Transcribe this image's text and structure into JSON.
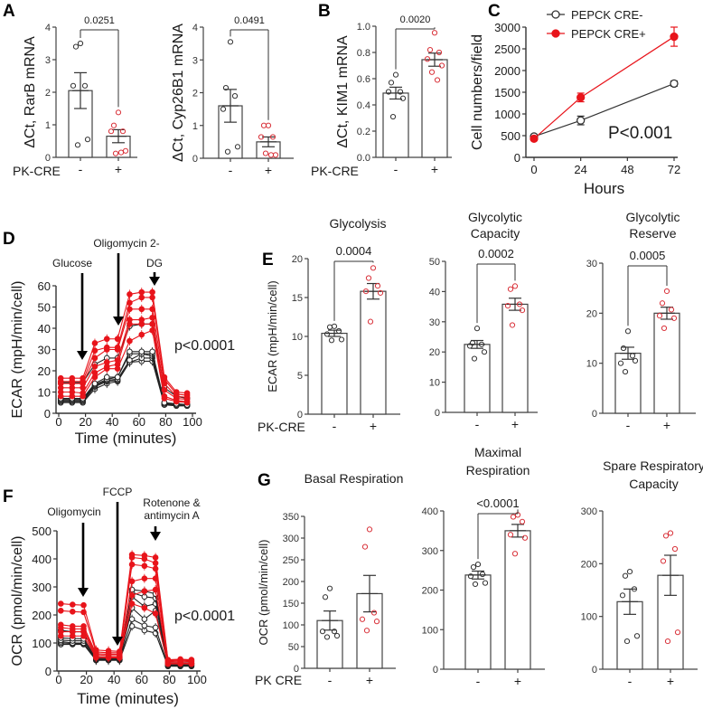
{
  "chart_data": [
    {
      "type": "bar",
      "panel": "A",
      "ylabel": "ΔCt, RarB  mRNA",
      "group_label": "PK-CRE",
      "ylim": [
        0,
        4
      ],
      "ytick_labels": [
        "0",
        "1",
        "2",
        "3",
        "4"
      ],
      "pvalue": "0.0251",
      "title": [],
      "bars": [
        {
          "category": "-",
          "mean": 2.05,
          "sem": 0.55,
          "color": "#333333",
          "points": [
            3.5,
            3.4,
            2.2,
            2.2,
            0.55,
            0.38
          ]
        },
        {
          "category": "+",
          "mean": 0.65,
          "sem": 0.2,
          "color": "#d9323a",
          "points": [
            1.38,
            0.98,
            0.8,
            0.8,
            0.2,
            0.12,
            0.15
          ]
        }
      ]
    },
    {
      "type": "bar",
      "ylabel": "ΔCt, Cyp26B1 mRNA",
      "ylim": [
        0,
        4
      ],
      "ytick_labels": [
        "0",
        "1",
        "2",
        "3",
        "4"
      ],
      "pvalue": "0.0491",
      "title": [],
      "bars": [
        {
          "category": "-",
          "mean": 1.6,
          "sem": 0.5,
          "color": "#333333",
          "points": [
            3.55,
            2.15,
            1.9,
            1.5,
            0.35,
            0.2
          ]
        },
        {
          "category": "+",
          "mean": 0.5,
          "sem": 0.15,
          "color": "#d9323a",
          "points": [
            1.0,
            1.0,
            0.65,
            0.65,
            0.1,
            0.15,
            0.1
          ]
        }
      ]
    },
    {
      "type": "bar",
      "panel": "B",
      "ylabel": "ΔCt, KIM1  mRNA",
      "group_label": "PK-CRE",
      "ylim": [
        0,
        1.0
      ],
      "ytick_labels": [
        "0.0",
        "0.2",
        "0.4",
        "0.6",
        "0.8",
        "1.0"
      ],
      "pvalue": "0.0020",
      "title": [],
      "bars": [
        {
          "category": "-",
          "mean": 0.49,
          "sem": 0.045,
          "color": "#333333",
          "points": [
            0.63,
            0.57,
            0.5,
            0.5,
            0.45,
            0.31
          ]
        },
        {
          "category": "+",
          "mean": 0.745,
          "sem": 0.05,
          "color": "#d9323a",
          "points": [
            0.95,
            0.82,
            0.8,
            0.75,
            0.7,
            0.65,
            0.59
          ]
        }
      ]
    },
    {
      "type": "line",
      "panel": "C",
      "ylabel": "Cell numbers/field",
      "xlabel": "Hours",
      "ylim": [
        0,
        3000
      ],
      "xlim": [
        0,
        72
      ],
      "ytick_labels": [
        "0",
        "500",
        "1000",
        "1500",
        "2000",
        "2500",
        "3000"
      ],
      "xtick_labels": [
        "0",
        "24",
        "48",
        "72"
      ],
      "annotation": "P<0.001",
      "legend_position": "top-left",
      "x": [
        0,
        24,
        72
      ],
      "series": [
        {
          "name": "PEPCK CRE-",
          "color": "#333333",
          "marker": "open-circle",
          "values": [
            480,
            850,
            1700
          ],
          "err": [
            40,
            100,
            60
          ]
        },
        {
          "name": "PEPCK CRE+",
          "color": "#e8141b",
          "marker": "filled-circle",
          "values": [
            430,
            1380,
            2780
          ],
          "err": [
            40,
            100,
            220
          ]
        }
      ]
    },
    {
      "type": "line",
      "panel": "D",
      "ylabel": "ECAR (mpH/min/cell)",
      "xlabel": "Time (minutes)",
      "ylim": [
        0,
        60
      ],
      "xlim": [
        0,
        100
      ],
      "ytick_labels": [
        "0",
        "10",
        "20",
        "30",
        "40",
        "50",
        "60"
      ],
      "xtick_labels": [
        "0",
        "20",
        "40",
        "60",
        "80",
        "100"
      ],
      "annotation": "p<0.0001",
      "injections": [
        {
          "lines": [
            "Glucose"
          ]
        },
        {
          "lines": [
            "Oligomycin 2-"
          ]
        },
        {
          "lines": [
            "DG"
          ]
        }
      ],
      "x": [
        1.5,
        10,
        18,
        27,
        36,
        44,
        53,
        62,
        70,
        79,
        88,
        96
      ],
      "series": [
        {
          "color": "#e8141b",
          "values": [
            16.5,
            16.5,
            16.5,
            33,
            35,
            35,
            56,
            57,
            57,
            17,
            10,
            9.5
          ]
        },
        {
          "color": "#e8141b",
          "values": [
            15,
            15,
            15,
            29.5,
            31,
            31,
            52,
            54.5,
            54.5,
            16,
            9,
            8.5
          ]
        },
        {
          "color": "#e8141b",
          "values": [
            14,
            14,
            14,
            26,
            30,
            30,
            49,
            49,
            49,
            14,
            8,
            7.5
          ]
        },
        {
          "color": "#e8141b",
          "values": [
            12,
            12,
            12,
            22,
            24,
            25,
            44,
            44,
            45,
            11,
            7,
            6.5
          ]
        },
        {
          "color": "#e8141b",
          "values": [
            10,
            10,
            9.5,
            19,
            22,
            23,
            42,
            42,
            42,
            8,
            6,
            5.5
          ]
        },
        {
          "color": "#e8141b",
          "values": [
            8,
            8,
            8,
            17,
            21,
            21,
            34,
            37,
            39,
            7,
            5.5,
            5
          ]
        },
        {
          "color": "#222222",
          "values": [
            14.5,
            14.5,
            14.5,
            23,
            26,
            26,
            41,
            42,
            42,
            12,
            8,
            7
          ]
        },
        {
          "color": "#222222",
          "values": [
            7,
            7,
            7,
            14,
            17,
            17,
            29,
            29,
            29,
            5,
            4.5,
            4
          ]
        },
        {
          "color": "#222222",
          "values": [
            6.5,
            6.5,
            6.5,
            13.5,
            16,
            17,
            28,
            28,
            28,
            5,
            4,
            4
          ]
        },
        {
          "color": "#222222",
          "values": [
            6,
            6,
            6,
            13,
            15.5,
            16,
            25,
            28,
            27,
            4.5,
            4,
            4
          ]
        },
        {
          "color": "#222222",
          "values": [
            5.5,
            5.5,
            5.5,
            12.5,
            15,
            15.5,
            24,
            26,
            26,
            4,
            4,
            3.5
          ]
        },
        {
          "color": "#222222",
          "values": [
            5,
            5,
            5,
            11.5,
            14,
            15,
            24,
            24.5,
            24.5,
            4,
            3.5,
            3.5
          ]
        }
      ]
    },
    {
      "type": "bar",
      "panel": "E",
      "ylabel": "ECAR (mpH/min/cell)",
      "group_label": "PK-CRE",
      "ylim": [
        0,
        20
      ],
      "ytick_labels": [
        "0",
        "5",
        "10",
        "15",
        "20"
      ],
      "pvalue": "0.0004",
      "title": [
        "Glycolysis"
      ],
      "bars": [
        {
          "category": "-",
          "mean": 10.4,
          "sem": 0.4,
          "color": "#333333",
          "points": [
            11.3,
            11.2,
            10.7,
            10.3,
            9.6,
            9.5
          ]
        },
        {
          "category": "+",
          "mean": 15.8,
          "sem": 1.0,
          "color": "#d9323a",
          "points": [
            18.8,
            17.5,
            16.5,
            15.8,
            15.6,
            11.9
          ]
        }
      ]
    },
    {
      "type": "bar",
      "ylim": [
        0,
        50
      ],
      "ytick_labels": [
        "0",
        "10",
        "20",
        "30",
        "40",
        "50"
      ],
      "pvalue": "0.0002",
      "title": [
        "Glycolytic",
        "Capacity"
      ],
      "bars": [
        {
          "category": "-",
          "mean": 22.5,
          "sem": 1.3,
          "color": "#333333",
          "points": [
            27.8,
            23,
            22.5,
            22,
            20,
            17.8
          ]
        },
        {
          "category": "+",
          "mean": 35.8,
          "sem": 2.0,
          "color": "#d9323a",
          "points": [
            41.8,
            40.8,
            35.8,
            35.3,
            33.8,
            28.9
          ]
        }
      ]
    },
    {
      "type": "bar",
      "ylim": [
        0,
        30
      ],
      "ytick_labels": [
        "0",
        "10",
        "20",
        "30"
      ],
      "pvalue": "0.0005",
      "title": [
        "Glycolytic",
        "Reserve"
      ],
      "bars": [
        {
          "category": "-",
          "mean": 12,
          "sem": 1.2,
          "color": "#333333",
          "points": [
            16.4,
            13,
            11.5,
            10,
            10.5,
            8.3
          ]
        },
        {
          "category": "+",
          "mean": 20,
          "sem": 1.2,
          "color": "#d9323a",
          "points": [
            24.4,
            22,
            20.7,
            19.5,
            19,
            17
          ]
        }
      ]
    },
    {
      "type": "line",
      "panel": "F",
      "ylabel": "OCR (pmol/min/cell)",
      "xlabel": "Time (minutes)",
      "ylim": [
        0,
        500
      ],
      "xlim": [
        0,
        100
      ],
      "ytick_labels": [
        "0",
        "100",
        "200",
        "300",
        "400",
        "500"
      ],
      "xtick_labels": [
        "0",
        "20",
        "40",
        "60",
        "80",
        "100"
      ],
      "annotation": "p<0.0001",
      "injections": [
        {
          "lines": [
            "Oligomycin"
          ]
        },
        {
          "lines": [
            "FCCP"
          ]
        },
        {
          "lines": [
            "Rotenone &",
            "antimycin A"
          ]
        }
      ],
      "x": [
        1.5,
        10,
        18,
        27,
        36,
        44,
        53,
        62,
        70,
        79,
        88,
        96
      ],
      "series": [
        {
          "color": "#e8141b",
          "values": [
            240,
            237,
            235,
            75,
            72,
            70,
            415,
            412,
            405,
            40,
            42,
            40
          ]
        },
        {
          "color": "#e8141b",
          "values": [
            215,
            212,
            210,
            68,
            65,
            65,
            405,
            400,
            385,
            38,
            40,
            38
          ]
        },
        {
          "color": "#e8141b",
          "values": [
            165,
            160,
            160,
            62,
            60,
            60,
            380,
            375,
            365,
            35,
            37,
            35
          ]
        },
        {
          "color": "#e8141b",
          "values": [
            155,
            150,
            150,
            58,
            55,
            55,
            320,
            330,
            330,
            32,
            33,
            32
          ]
        },
        {
          "color": "#e8141b",
          "values": [
            140,
            140,
            140,
            52,
            50,
            50,
            270,
            285,
            290,
            28,
            28,
            27
          ]
        },
        {
          "color": "#e8141b",
          "values": [
            125,
            125,
            125,
            48,
            47,
            47,
            240,
            225,
            205,
            25,
            26,
            25
          ]
        },
        {
          "color": "#222222",
          "values": [
            145,
            140,
            140,
            50,
            48,
            48,
            290,
            285,
            275,
            28,
            28,
            28
          ]
        },
        {
          "color": "#222222",
          "values": [
            118,
            116,
            115,
            45,
            44,
            44,
            280,
            265,
            260,
            25,
            25,
            25
          ]
        },
        {
          "color": "#222222",
          "values": [
            110,
            108,
            108,
            42,
            42,
            42,
            265,
            230,
            240,
            22,
            22,
            22
          ]
        },
        {
          "color": "#222222",
          "values": [
            105,
            100,
            100,
            40,
            40,
            40,
            225,
            185,
            215,
            20,
            20,
            20
          ]
        },
        {
          "color": "#222222",
          "values": [
            100,
            98,
            98,
            40,
            40,
            40,
            185,
            162,
            155,
            18,
            18,
            18
          ]
        },
        {
          "color": "#222222",
          "values": [
            95,
            95,
            95,
            38,
            38,
            38,
            160,
            145,
            135,
            17,
            17,
            17
          ]
        }
      ]
    },
    {
      "type": "bar",
      "panel": "G",
      "ylabel": "OCR (pmol/min/cell)",
      "group_label": "PK CRE",
      "ylim": [
        0,
        350
      ],
      "ytick_labels": [
        "0",
        "50",
        "100",
        "150",
        "200",
        "250",
        "300",
        "350"
      ],
      "title": [
        "Basal Respiration"
      ],
      "bars": [
        {
          "category": "-",
          "mean": 110,
          "sem": 22,
          "color": "#333333",
          "points": [
            184,
            164,
            85,
            85,
            75,
            72
          ]
        },
        {
          "category": "+",
          "mean": 172,
          "sem": 42,
          "color": "#d9323a",
          "points": [
            320,
            280,
            128,
            113,
            108,
            87
          ]
        }
      ]
    },
    {
      "type": "bar",
      "ylim": [
        0,
        400
      ],
      "ytick_labels": [
        "0",
        "100",
        "200",
        "300",
        "400"
      ],
      "pvalue": "<0.0001",
      "title": [
        "Maximal",
        "Respiration"
      ],
      "bars": [
        {
          "category": "-",
          "mean": 238,
          "sem": 10,
          "color": "#333333",
          "points": [
            265,
            258,
            240,
            235,
            218,
            215
          ]
        },
        {
          "category": "+",
          "mean": 350,
          "sem": 16,
          "color": "#d9323a",
          "points": [
            390,
            385,
            373,
            340,
            332,
            292
          ]
        }
      ]
    },
    {
      "type": "bar",
      "ylim": [
        0,
        300
      ],
      "ytick_labels": [
        "0",
        "100",
        "200",
        "300"
      ],
      "title": [
        "Spare Respiratory",
        "Capacity"
      ],
      "bars": [
        {
          "category": "-",
          "mean": 128,
          "sem": 24,
          "color": "#333333",
          "points": [
            185,
            177,
            152,
            140,
            63,
            53
          ]
        },
        {
          "category": "+",
          "mean": 178,
          "sem": 38,
          "color": "#d9323a",
          "points": [
            258,
            253,
            228,
            205,
            70,
            53
          ]
        }
      ]
    }
  ]
}
